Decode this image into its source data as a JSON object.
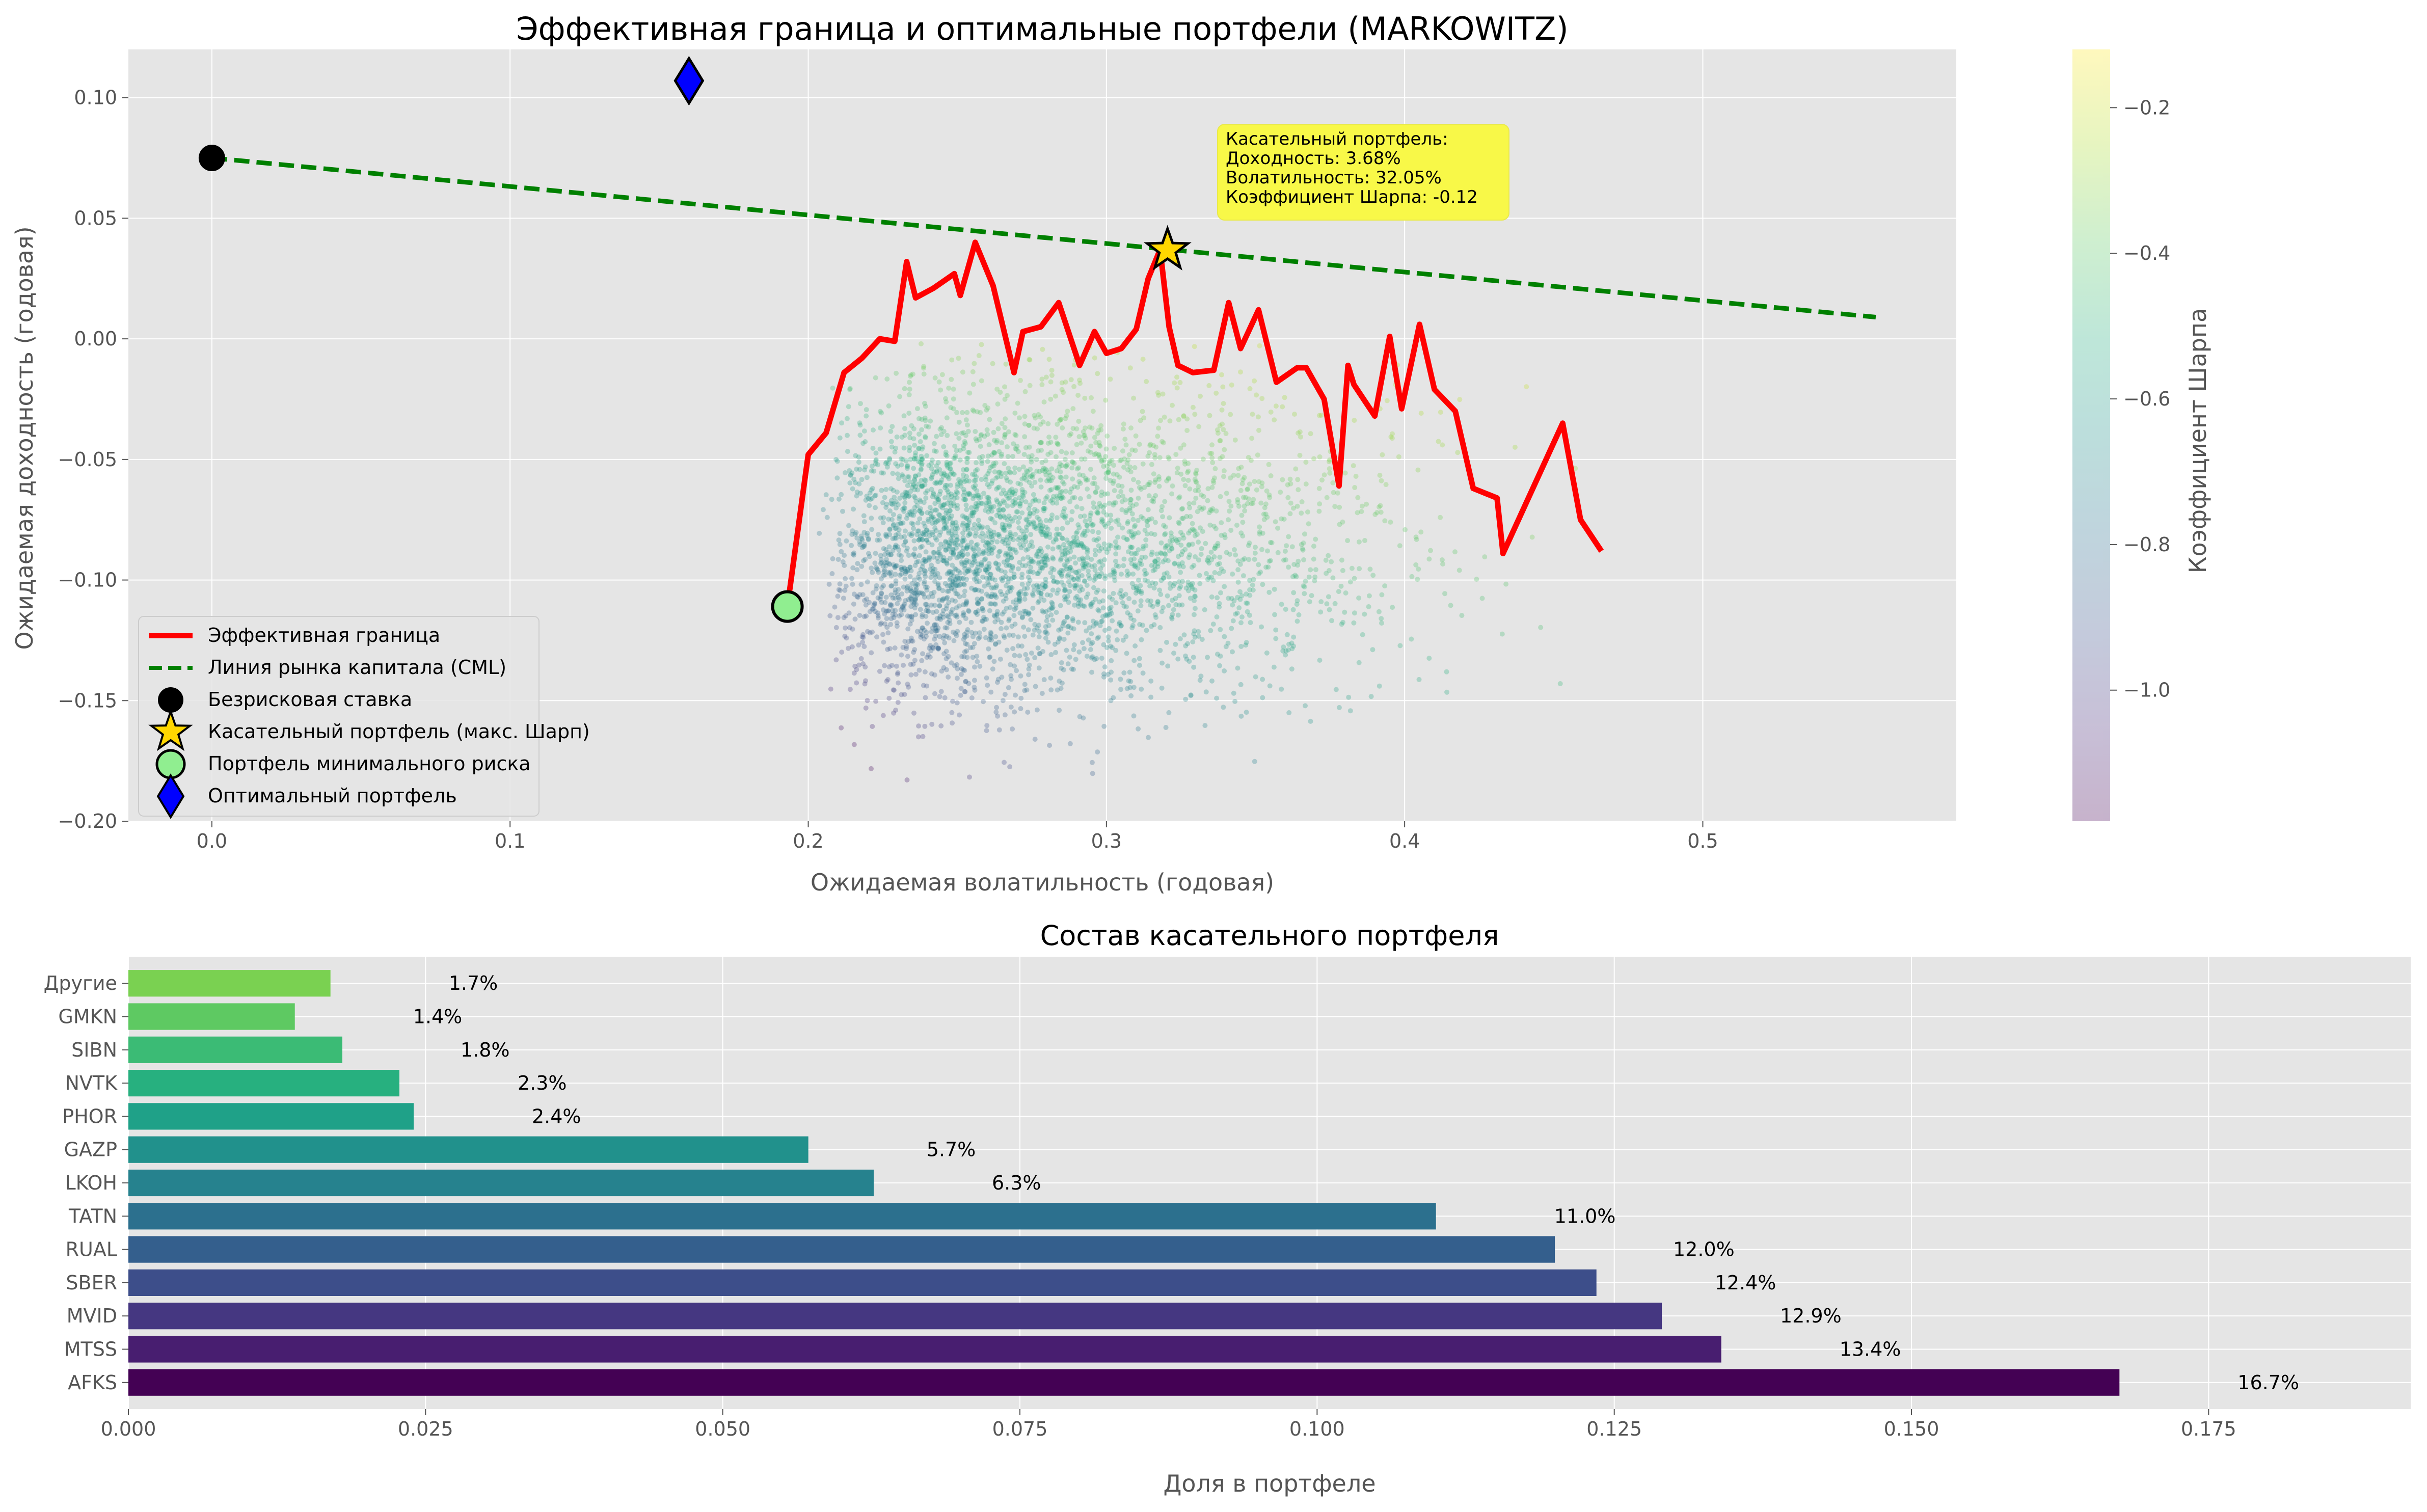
{
  "chart_data": [
    {
      "type": "scatter",
      "title": "Эффективная граница и оптимальные портфели (MARKOWITZ)",
      "xlabel": "Ожидаемая волатильность (годовая)",
      "ylabel": "Ожидаемая доходность (годовая)",
      "xlim": [
        -0.028,
        0.585
      ],
      "ylim": [
        -0.2,
        0.12
      ],
      "x_ticks": [
        0.0,
        0.1,
        0.2,
        0.3,
        0.4,
        0.5
      ],
      "x_tick_labels": [
        "0.0",
        "0.1",
        "0.2",
        "0.3",
        "0.4",
        "0.5"
      ],
      "y_ticks": [
        0.1,
        0.05,
        0.0,
        -0.05,
        -0.1,
        -0.15,
        -0.2
      ],
      "y_tick_labels": [
        "0.10",
        "0.05",
        "0.00",
        "−0.05",
        "−0.10",
        "−0.15",
        "−0.20"
      ],
      "grid": true,
      "legend_position": "lower-left",
      "colorbar": {
        "label": "Коэффициент Шарпа",
        "colormap": "viridis",
        "alpha": 0.3,
        "range": [
          -1.18,
          -0.12
        ],
        "ticks": [
          -0.2,
          -0.4,
          -0.6,
          -0.8,
          -1.0
        ],
        "tick_labels": [
          "−0.2",
          "−0.4",
          "−0.6",
          "−0.8",
          "−1.0"
        ]
      },
      "random_portfolios": {
        "description": "simulated portfolios colored by Sharpe ratio",
        "vol_range": [
          0.19,
          0.47
        ],
        "ret_range": [
          -0.19,
          0.0
        ]
      },
      "series": [
        {
          "name": "Эффективная граница",
          "kind": "line",
          "color": "#ff0000",
          "x": [
            0.193,
            0.2,
            0.206,
            0.212,
            0.218,
            0.224,
            0.229,
            0.233,
            0.236,
            0.242,
            0.249,
            0.251,
            0.256,
            0.262,
            0.269,
            0.272,
            0.278,
            0.284,
            0.291,
            0.296,
            0.3,
            0.305,
            0.31,
            0.314,
            0.318,
            0.321,
            0.324,
            0.329,
            0.336,
            0.341,
            0.345,
            0.351,
            0.357,
            0.364,
            0.367,
            0.373,
            0.378,
            0.381,
            0.383,
            0.39,
            0.395,
            0.399,
            0.405,
            0.41,
            0.417,
            0.423,
            0.431,
            0.433,
            0.453,
            0.459,
            0.466
          ],
          "y": [
            -0.111,
            -0.048,
            -0.039,
            -0.014,
            -0.008,
            0.0,
            -0.001,
            0.032,
            0.017,
            0.021,
            0.027,
            0.018,
            0.04,
            0.022,
            -0.014,
            0.003,
            0.005,
            0.015,
            -0.011,
            0.003,
            -0.006,
            -0.004,
            0.004,
            0.025,
            0.037,
            0.005,
            -0.011,
            -0.014,
            -0.013,
            0.015,
            -0.004,
            0.012,
            -0.018,
            -0.012,
            -0.012,
            -0.025,
            -0.061,
            -0.011,
            -0.019,
            -0.032,
            0.001,
            -0.029,
            0.006,
            -0.021,
            -0.03,
            -0.062,
            -0.066,
            -0.089,
            -0.035,
            -0.075,
            -0.088
          ]
        },
        {
          "name": "Линия рынка капитала (CML)",
          "kind": "dashed-line",
          "color": "#008000",
          "x": [
            0.0,
            0.558
          ],
          "y": [
            0.075,
            0.009
          ]
        },
        {
          "name": "Безрисковая ставка",
          "kind": "marker-circle",
          "color": "#000000",
          "x": [
            0.0
          ],
          "y": [
            0.075
          ]
        },
        {
          "name": "Касательный портфель (макс. Шарп)",
          "kind": "marker-star",
          "color": "#ffd700",
          "x": [
            0.3205
          ],
          "y": [
            0.0368
          ]
        },
        {
          "name": "Портфель минимального риска",
          "kind": "marker-circle",
          "color": "#90ee90",
          "x": [
            0.193
          ],
          "y": [
            -0.111
          ]
        },
        {
          "name": "Оптимальный портфель",
          "kind": "marker-diamond",
          "color": "#0000ff",
          "x": [
            0.16
          ],
          "y": [
            0.107
          ]
        }
      ],
      "annotation": {
        "lines": [
          "Касательный портфель:",
          "Доходность: 3.68%",
          "Волатильность: 32.05%",
          "Коэффициент Шарпа: -0.12"
        ],
        "background": "#f8f848",
        "anchor_x": 0.338,
        "anchor_y": 0.091
      }
    },
    {
      "type": "bar",
      "orientation": "horizontal",
      "title": "Состав касательного портфеля",
      "xlabel": "Доля в портфеле",
      "ylabel": "",
      "xlim": [
        0,
        0.192
      ],
      "x_ticks": [
        0.0,
        0.025,
        0.05,
        0.075,
        0.1,
        0.125,
        0.15,
        0.175
      ],
      "x_tick_labels": [
        "0.000",
        "0.025",
        "0.050",
        "0.075",
        "0.100",
        "0.125",
        "0.150",
        "0.175"
      ],
      "grid": true,
      "colormap": "viridis",
      "categories": [
        "AFKS",
        "MTSS",
        "MVID",
        "SBER",
        "RUAL",
        "TATN",
        "LKOH",
        "GAZP",
        "PHOR",
        "NVTK",
        "SIBN",
        "GMKN",
        "Другие"
      ],
      "values": [
        0.1675,
        0.134,
        0.129,
        0.1235,
        0.12,
        0.11,
        0.0627,
        0.0572,
        0.024,
        0.0228,
        0.018,
        0.014,
        0.017
      ],
      "value_labels": [
        "16.7%",
        "13.4%",
        "12.9%",
        "12.4%",
        "12.0%",
        "11.0%",
        "6.3%",
        "5.7%",
        "2.4%",
        "2.3%",
        "1.8%",
        "1.4%",
        "1.7%"
      ],
      "colors": [
        "#440154",
        "#481e70",
        "#453781",
        "#3d4e8a",
        "#345f8d",
        "#2c708e",
        "#26828e",
        "#21918c",
        "#1fa188",
        "#27b07f",
        "#3bbb75",
        "#5ec962",
        "#7ad151"
      ]
    }
  ]
}
